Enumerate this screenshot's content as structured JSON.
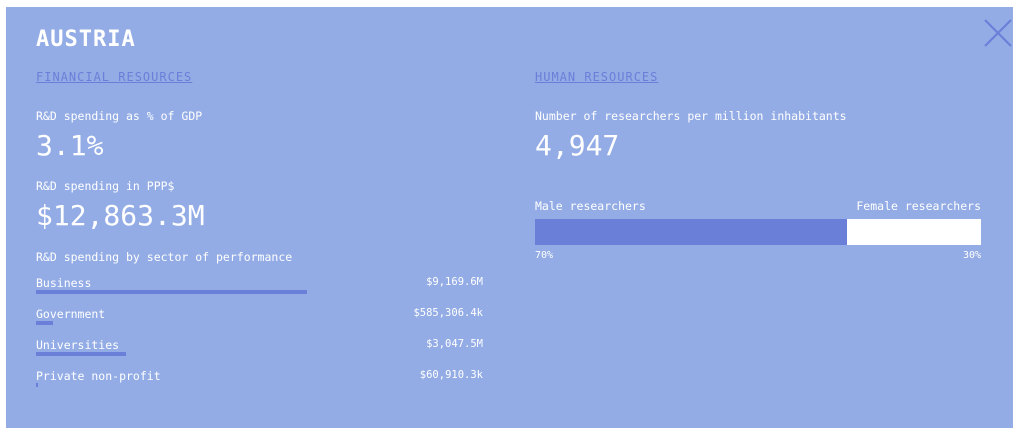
{
  "country": "AUSTRIA",
  "financial": {
    "heading": "FINANCIAL RESOURCES",
    "rd_gdp_label": "R&D spending as % of GDP",
    "rd_gdp_value": "3.1%",
    "rd_ppp_label": "R&D spending in PPP$",
    "rd_ppp_value": "$12,863.3M",
    "sector_label": "R&D spending by sector of performance",
    "sectors": [
      {
        "name": "Business",
        "value": "$9,169.6M",
        "share": 0.713
      },
      {
        "name": "Government",
        "value": "$585,306.4k",
        "share": 0.0455
      },
      {
        "name": "Universities",
        "value": "$3,047.5M",
        "share": 0.237
      },
      {
        "name": "Private non-profit",
        "value": "$60,910.3k",
        "share": 0.0047
      }
    ]
  },
  "human": {
    "heading": "HUMAN RESOURCES",
    "researchers_label": "Number of researchers per million inhabitants",
    "researchers_value": "4,947",
    "male_label": "Male researchers",
    "female_label": "Female researchers",
    "male_pct": "70%",
    "female_pct": "30%",
    "male_share": 0.7
  },
  "colors": {
    "panel": "#93ace5",
    "accent": "#6a7fd8",
    "text": "#ffffff"
  },
  "icons": {
    "close": "close-icon"
  }
}
